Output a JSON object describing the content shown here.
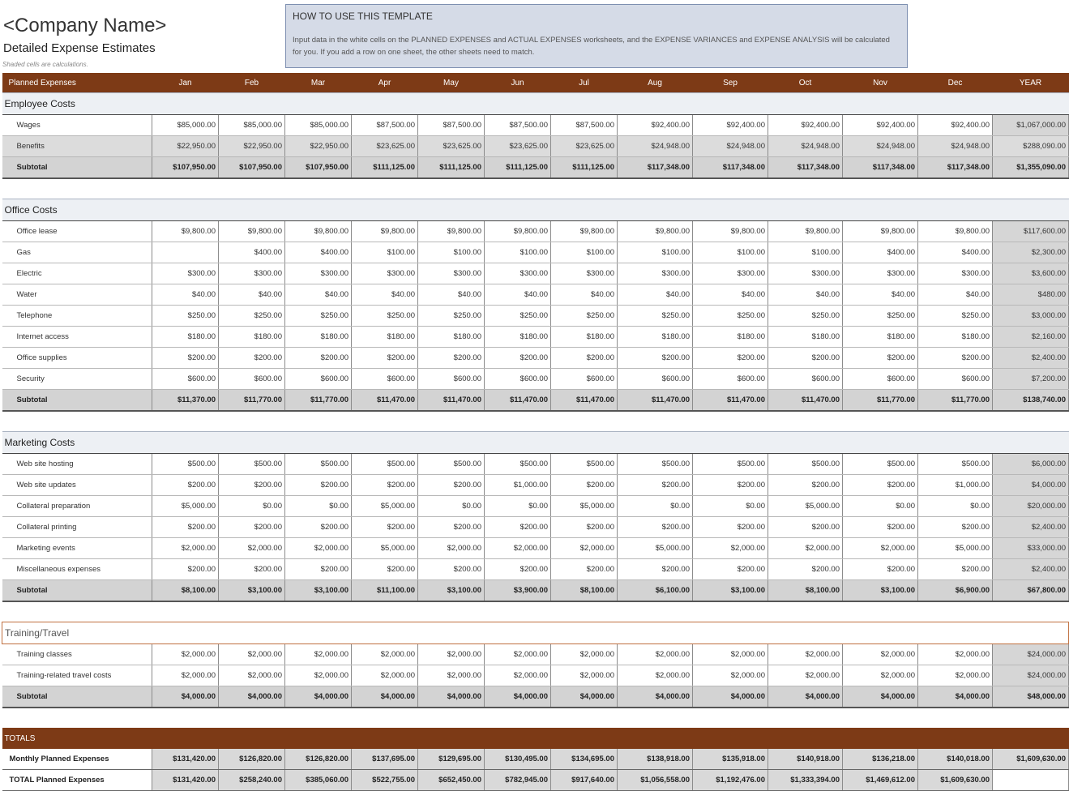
{
  "header": {
    "company": "<Company Name>",
    "subtitle": "Detailed Expense Estimates",
    "note": "Shaded cells are calculations."
  },
  "howto": {
    "title": "HOW TO USE THIS TEMPLATE",
    "body": "Input data in the white cells on the PLANNED EXPENSES and ACTUAL EXPENSES worksheets, and the EXPENSE VARIANCES and EXPENSE ANALYSIS will be calculated for you.  If you add a row on one sheet, the other sheets need to match."
  },
  "columns": [
    "Planned Expenses",
    "Jan",
    "Feb",
    "Mar",
    "Apr",
    "May",
    "Jun",
    "Jul",
    "Aug",
    "Sep",
    "Oct",
    "Nov",
    "Dec",
    "YEAR"
  ],
  "sections": [
    {
      "title": "Employee Costs",
      "style": "normal",
      "rows": [
        {
          "label": "Wages",
          "shaded": false,
          "values": [
            "$85,000.00",
            "$85,000.00",
            "$85,000.00",
            "$87,500.00",
            "$87,500.00",
            "$87,500.00",
            "$87,500.00",
            "$92,400.00",
            "$92,400.00",
            "$92,400.00",
            "$92,400.00",
            "$92,400.00",
            "$1,067,000.00"
          ]
        },
        {
          "label": "Benefits",
          "shaded": true,
          "values": [
            "$22,950.00",
            "$22,950.00",
            "$22,950.00",
            "$23,625.00",
            "$23,625.00",
            "$23,625.00",
            "$23,625.00",
            "$24,948.00",
            "$24,948.00",
            "$24,948.00",
            "$24,948.00",
            "$24,948.00",
            "$288,090.00"
          ]
        }
      ],
      "subtotal": {
        "label": "Subtotal",
        "values": [
          "$107,950.00",
          "$107,950.00",
          "$107,950.00",
          "$111,125.00",
          "$111,125.00",
          "$111,125.00",
          "$111,125.00",
          "$117,348.00",
          "$117,348.00",
          "$117,348.00",
          "$117,348.00",
          "$117,348.00",
          "$1,355,090.00"
        ]
      }
    },
    {
      "title": "Office Costs",
      "style": "normal",
      "rows": [
        {
          "label": "Office lease",
          "shaded": false,
          "values": [
            "$9,800.00",
            "$9,800.00",
            "$9,800.00",
            "$9,800.00",
            "$9,800.00",
            "$9,800.00",
            "$9,800.00",
            "$9,800.00",
            "$9,800.00",
            "$9,800.00",
            "$9,800.00",
            "$9,800.00",
            "$117,600.00"
          ]
        },
        {
          "label": "Gas",
          "shaded": false,
          "values": [
            "",
            "$400.00",
            "$400.00",
            "$100.00",
            "$100.00",
            "$100.00",
            "$100.00",
            "$100.00",
            "$100.00",
            "$100.00",
            "$400.00",
            "$400.00",
            "$2,300.00"
          ]
        },
        {
          "label": "Electric",
          "shaded": false,
          "values": [
            "$300.00",
            "$300.00",
            "$300.00",
            "$300.00",
            "$300.00",
            "$300.00",
            "$300.00",
            "$300.00",
            "$300.00",
            "$300.00",
            "$300.00",
            "$300.00",
            "$3,600.00"
          ]
        },
        {
          "label": "Water",
          "shaded": false,
          "values": [
            "$40.00",
            "$40.00",
            "$40.00",
            "$40.00",
            "$40.00",
            "$40.00",
            "$40.00",
            "$40.00",
            "$40.00",
            "$40.00",
            "$40.00",
            "$40.00",
            "$480.00"
          ]
        },
        {
          "label": "Telephone",
          "shaded": false,
          "values": [
            "$250.00",
            "$250.00",
            "$250.00",
            "$250.00",
            "$250.00",
            "$250.00",
            "$250.00",
            "$250.00",
            "$250.00",
            "$250.00",
            "$250.00",
            "$250.00",
            "$3,000.00"
          ]
        },
        {
          "label": "Internet access",
          "shaded": false,
          "values": [
            "$180.00",
            "$180.00",
            "$180.00",
            "$180.00",
            "$180.00",
            "$180.00",
            "$180.00",
            "$180.00",
            "$180.00",
            "$180.00",
            "$180.00",
            "$180.00",
            "$2,160.00"
          ]
        },
        {
          "label": "Office supplies",
          "shaded": false,
          "values": [
            "$200.00",
            "$200.00",
            "$200.00",
            "$200.00",
            "$200.00",
            "$200.00",
            "$200.00",
            "$200.00",
            "$200.00",
            "$200.00",
            "$200.00",
            "$200.00",
            "$2,400.00"
          ]
        },
        {
          "label": "Security",
          "shaded": false,
          "values": [
            "$600.00",
            "$600.00",
            "$600.00",
            "$600.00",
            "$600.00",
            "$600.00",
            "$600.00",
            "$600.00",
            "$600.00",
            "$600.00",
            "$600.00",
            "$600.00",
            "$7,200.00"
          ]
        }
      ],
      "subtotal": {
        "label": "Subtotal",
        "values": [
          "$11,370.00",
          "$11,770.00",
          "$11,770.00",
          "$11,470.00",
          "$11,470.00",
          "$11,470.00",
          "$11,470.00",
          "$11,470.00",
          "$11,470.00",
          "$11,470.00",
          "$11,770.00",
          "$11,770.00",
          "$138,740.00"
        ]
      }
    },
    {
      "title": "Marketing Costs",
      "style": "normal",
      "rows": [
        {
          "label": "Web site hosting",
          "shaded": false,
          "values": [
            "$500.00",
            "$500.00",
            "$500.00",
            "$500.00",
            "$500.00",
            "$500.00",
            "$500.00",
            "$500.00",
            "$500.00",
            "$500.00",
            "$500.00",
            "$500.00",
            "$6,000.00"
          ]
        },
        {
          "label": "Web site updates",
          "shaded": false,
          "values": [
            "$200.00",
            "$200.00",
            "$200.00",
            "$200.00",
            "$200.00",
            "$1,000.00",
            "$200.00",
            "$200.00",
            "$200.00",
            "$200.00",
            "$200.00",
            "$1,000.00",
            "$4,000.00"
          ]
        },
        {
          "label": "Collateral preparation",
          "shaded": false,
          "values": [
            "$5,000.00",
            "$0.00",
            "$0.00",
            "$5,000.00",
            "$0.00",
            "$0.00",
            "$5,000.00",
            "$0.00",
            "$0.00",
            "$5,000.00",
            "$0.00",
            "$0.00",
            "$20,000.00"
          ]
        },
        {
          "label": "Collateral printing",
          "shaded": false,
          "values": [
            "$200.00",
            "$200.00",
            "$200.00",
            "$200.00",
            "$200.00",
            "$200.00",
            "$200.00",
            "$200.00",
            "$200.00",
            "$200.00",
            "$200.00",
            "$200.00",
            "$2,400.00"
          ]
        },
        {
          "label": "Marketing events",
          "shaded": false,
          "values": [
            "$2,000.00",
            "$2,000.00",
            "$2,000.00",
            "$5,000.00",
            "$2,000.00",
            "$2,000.00",
            "$2,000.00",
            "$5,000.00",
            "$2,000.00",
            "$2,000.00",
            "$2,000.00",
            "$5,000.00",
            "$33,000.00"
          ]
        },
        {
          "label": "Miscellaneous expenses",
          "shaded": false,
          "values": [
            "$200.00",
            "$200.00",
            "$200.00",
            "$200.00",
            "$200.00",
            "$200.00",
            "$200.00",
            "$200.00",
            "$200.00",
            "$200.00",
            "$200.00",
            "$200.00",
            "$2,400.00"
          ]
        }
      ],
      "subtotal": {
        "label": "Subtotal",
        "values": [
          "$8,100.00",
          "$3,100.00",
          "$3,100.00",
          "$11,100.00",
          "$3,100.00",
          "$3,900.00",
          "$8,100.00",
          "$6,100.00",
          "$3,100.00",
          "$8,100.00",
          "$3,100.00",
          "$6,900.00",
          "$67,800.00"
        ]
      }
    },
    {
      "title": "Training/Travel",
      "style": "orange",
      "rows": [
        {
          "label": "Training classes",
          "shaded": false,
          "values": [
            "$2,000.00",
            "$2,000.00",
            "$2,000.00",
            "$2,000.00",
            "$2,000.00",
            "$2,000.00",
            "$2,000.00",
            "$2,000.00",
            "$2,000.00",
            "$2,000.00",
            "$2,000.00",
            "$2,000.00",
            "$24,000.00"
          ]
        },
        {
          "label": "Training-related travel costs",
          "shaded": false,
          "values": [
            "$2,000.00",
            "$2,000.00",
            "$2,000.00",
            "$2,000.00",
            "$2,000.00",
            "$2,000.00",
            "$2,000.00",
            "$2,000.00",
            "$2,000.00",
            "$2,000.00",
            "$2,000.00",
            "$2,000.00",
            "$24,000.00"
          ]
        }
      ],
      "subtotal": {
        "label": "Subtotal",
        "values": [
          "$4,000.00",
          "$4,000.00",
          "$4,000.00",
          "$4,000.00",
          "$4,000.00",
          "$4,000.00",
          "$4,000.00",
          "$4,000.00",
          "$4,000.00",
          "$4,000.00",
          "$4,000.00",
          "$4,000.00",
          "$48,000.00"
        ]
      }
    }
  ],
  "totals": {
    "title": "TOTALS",
    "rows": [
      {
        "label": "Monthly Planned Expenses",
        "values": [
          "$131,420.00",
          "$126,820.00",
          "$126,820.00",
          "$137,695.00",
          "$129,695.00",
          "$130,495.00",
          "$134,695.00",
          "$138,918.00",
          "$135,918.00",
          "$140,918.00",
          "$136,218.00",
          "$140,018.00",
          "$1,609,630.00"
        ]
      },
      {
        "label": "TOTAL Planned Expenses",
        "values": [
          "$131,420.00",
          "$258,240.00",
          "$385,060.00",
          "$522,755.00",
          "$652,450.00",
          "$782,945.00",
          "$917,640.00",
          "$1,056,558.00",
          "$1,192,476.00",
          "$1,333,394.00",
          "$1,469,612.00",
          "$1,609,630.00",
          ""
        ]
      }
    ]
  }
}
